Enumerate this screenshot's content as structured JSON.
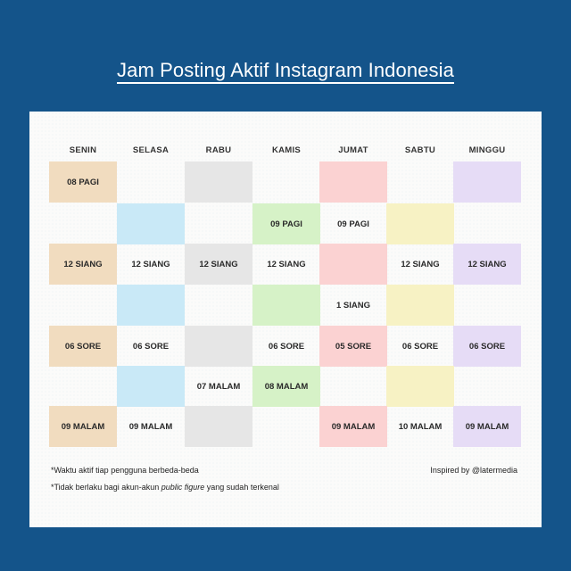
{
  "title": "Jam Posting Aktif Instagram Indonesia",
  "days": [
    "SENIN",
    "SELASA",
    "RABU",
    "KAMIS",
    "JUMAT",
    "SABTU",
    "MINGGU"
  ],
  "colors": {
    "background": "#14548a",
    "card": "#fbfbfa",
    "senin": "#f1dcbf",
    "selasa": "#c9e9f7",
    "rabu": "#e6e6e6",
    "kamis": "#d6f2c7",
    "jumat": "#fbd2d2",
    "sabtu": "#f7f2c4",
    "minggu": "#e6dcf6"
  },
  "schedule": [
    [
      {
        "text": "08 PAGI",
        "fill": "senin"
      },
      {
        "text": "",
        "fill": ""
      },
      {
        "text": "",
        "fill": "rabu"
      },
      {
        "text": "",
        "fill": ""
      },
      {
        "text": "",
        "fill": "jumat"
      },
      {
        "text": "",
        "fill": ""
      },
      {
        "text": "",
        "fill": "minggu"
      }
    ],
    [
      {
        "text": "",
        "fill": ""
      },
      {
        "text": "",
        "fill": "selasa"
      },
      {
        "text": "",
        "fill": ""
      },
      {
        "text": "09 PAGI",
        "fill": "kamis"
      },
      {
        "text": "09 PAGI",
        "fill": ""
      },
      {
        "text": "",
        "fill": "sabtu"
      },
      {
        "text": "",
        "fill": ""
      }
    ],
    [
      {
        "text": "12 SIANG",
        "fill": "senin"
      },
      {
        "text": "12 SIANG",
        "fill": ""
      },
      {
        "text": "12 SIANG",
        "fill": "rabu"
      },
      {
        "text": "12 SIANG",
        "fill": ""
      },
      {
        "text": "",
        "fill": "jumat"
      },
      {
        "text": "12 SIANG",
        "fill": ""
      },
      {
        "text": "12 SIANG",
        "fill": "minggu"
      }
    ],
    [
      {
        "text": "",
        "fill": ""
      },
      {
        "text": "",
        "fill": "selasa"
      },
      {
        "text": "",
        "fill": ""
      },
      {
        "text": "",
        "fill": "kamis"
      },
      {
        "text": "1 SIANG",
        "fill": ""
      },
      {
        "text": "",
        "fill": "sabtu"
      },
      {
        "text": "",
        "fill": ""
      }
    ],
    [
      {
        "text": "06 SORE",
        "fill": "senin"
      },
      {
        "text": "06 SORE",
        "fill": ""
      },
      {
        "text": "",
        "fill": "rabu"
      },
      {
        "text": "06 SORE",
        "fill": ""
      },
      {
        "text": "05 SORE",
        "fill": "jumat"
      },
      {
        "text": "06 SORE",
        "fill": ""
      },
      {
        "text": "06 SORE",
        "fill": "minggu"
      }
    ],
    [
      {
        "text": "",
        "fill": ""
      },
      {
        "text": "",
        "fill": "selasa"
      },
      {
        "text": "07 MALAM",
        "fill": ""
      },
      {
        "text": "08 MALAM",
        "fill": "kamis"
      },
      {
        "text": "",
        "fill": ""
      },
      {
        "text": "",
        "fill": "sabtu"
      },
      {
        "text": "",
        "fill": ""
      }
    ],
    [
      {
        "text": "09 MALAM",
        "fill": "senin"
      },
      {
        "text": "09 MALAM",
        "fill": ""
      },
      {
        "text": "",
        "fill": "rabu"
      },
      {
        "text": "",
        "fill": ""
      },
      {
        "text": "09 MALAM",
        "fill": "jumat"
      },
      {
        "text": "10 MALAM",
        "fill": ""
      },
      {
        "text": "09 MALAM",
        "fill": "minggu"
      }
    ]
  ],
  "notes": {
    "note1": "*Waktu aktif tiap pengguna berbeda-beda",
    "note2_before": "*Tidak berlaku bagi akun-akun ",
    "note2_emph": "public figure",
    "note2_after": " yang sudah terkenal"
  },
  "credit": "Inspired by @latermedia"
}
